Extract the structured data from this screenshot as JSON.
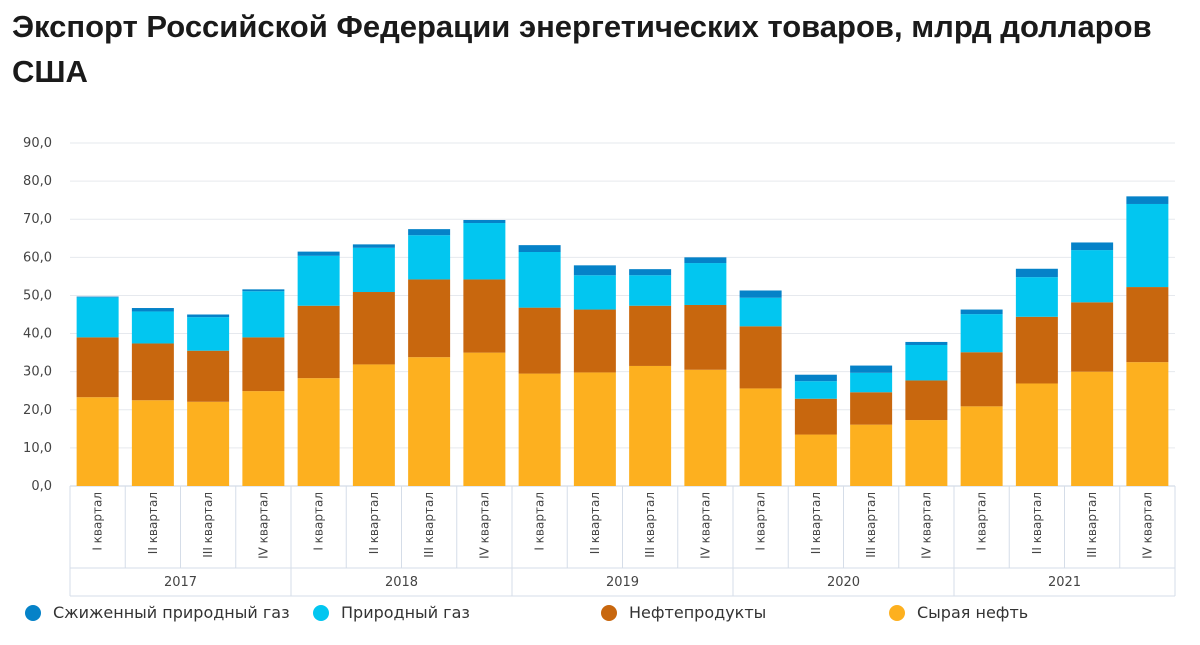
{
  "chart_data": {
    "type": "bar",
    "stacked": true,
    "title": "Экспорт Российской Федерации энергетических товаров, млрд долларов США",
    "xlabel": "",
    "ylabel": "",
    "ylim": [
      0,
      90
    ],
    "yticks": [
      "0,0",
      "10,0",
      "20,0",
      "30,0",
      "40,0",
      "50,0",
      "60,0",
      "70,0",
      "80,0",
      "90,0"
    ],
    "grid": true,
    "legend_position": "bottom",
    "years": [
      "2017",
      "2018",
      "2019",
      "2020",
      "2021"
    ],
    "categories": [
      "I квартал",
      "II квартал",
      "III квартал",
      "IV квартал",
      "I квартал",
      "II квартал",
      "III квартал",
      "IV квартал",
      "I квартал",
      "II квартал",
      "III квартал",
      "IV квартал",
      "I квартал",
      "II квартал",
      "III квартал",
      "IV квартал",
      "I квартал",
      "II квартал",
      "III квартал",
      "IV квартал"
    ],
    "series": [
      {
        "name": "Сырая нефть",
        "color": "#fdb01f",
        "values": [
          23.3,
          22.5,
          22.1,
          24.9,
          28.3,
          31.9,
          33.8,
          35.0,
          29.5,
          29.8,
          31.5,
          30.5,
          25.6,
          13.5,
          16.1,
          17.3,
          20.9,
          26.9,
          30.0,
          32.5
        ]
      },
      {
        "name": "Нефтепродукты",
        "color": "#c8670e",
        "values": [
          15.7,
          14.9,
          13.4,
          14.1,
          19.0,
          19.0,
          20.4,
          19.2,
          17.3,
          16.5,
          15.8,
          17.0,
          16.3,
          9.4,
          8.5,
          10.4,
          14.2,
          17.5,
          18.2,
          19.7
        ]
      },
      {
        "name": "Природный газ",
        "color": "#02c6f0",
        "values": [
          10.5,
          8.4,
          8.8,
          12.1,
          13.1,
          11.6,
          11.6,
          14.8,
          14.6,
          9.0,
          8.0,
          11.0,
          7.5,
          4.6,
          5.1,
          9.3,
          10.0,
          10.4,
          13.7,
          21.8
        ]
      },
      {
        "name": "Сжиженный природный газ",
        "color": "#0582c8",
        "values": [
          0.2,
          0.9,
          0.7,
          0.5,
          1.1,
          0.9,
          1.6,
          0.8,
          1.8,
          2.6,
          1.6,
          1.5,
          1.9,
          1.7,
          1.9,
          0.8,
          1.2,
          2.2,
          2.0,
          2.0
        ]
      }
    ],
    "legend_order": [
      "Сжиженный природный газ",
      "Природный газ",
      "Нефтепродукты",
      "Сырая нефть"
    ]
  }
}
